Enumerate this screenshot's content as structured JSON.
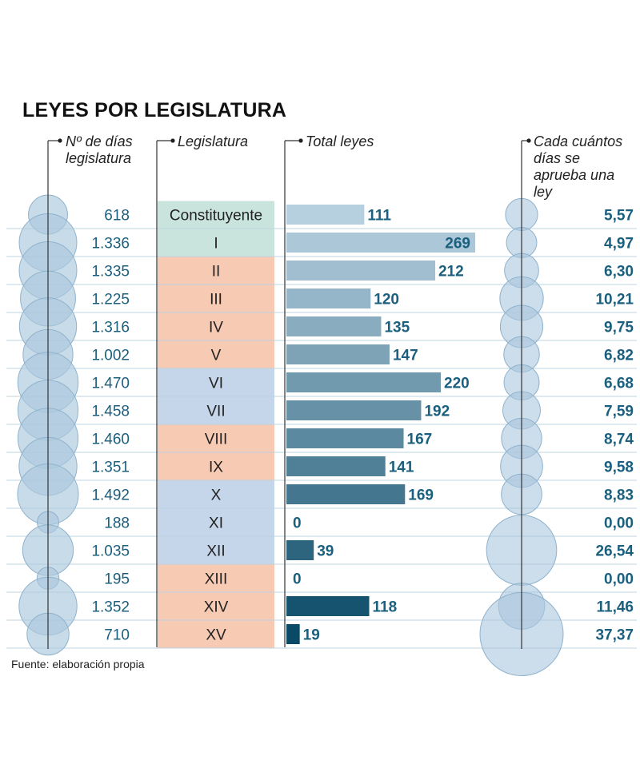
{
  "title": "LEYES POR LEGISLATURA",
  "source": "Fuente: elaboración propia",
  "headers": {
    "days": "Nº de días legislatura",
    "legislature": "Legislatura",
    "total": "Total leyes",
    "rate": "Cada cuántos días se aprueba una ley"
  },
  "colors": {
    "constituyente": "#c9e4dd",
    "group_blue": "#c5d6ea",
    "group_salmon": "#f6cab3",
    "bubble_fill": "#aac7dd",
    "bubble_stroke": "#8fb2cc",
    "bar_light": "#b7d0e0",
    "bar_dark": "#0b4a66",
    "value_text": "#1b5f7e"
  },
  "chart_data": {
    "type": "bar",
    "categories": [
      "Constituyente",
      "I",
      "II",
      "III",
      "IV",
      "V",
      "VI",
      "VII",
      "VIII",
      "IX",
      "X",
      "XI",
      "XII",
      "XIII",
      "XIV",
      "XV"
    ],
    "category_colors": [
      "constituyente",
      "constituyente",
      "group_salmon",
      "group_salmon",
      "group_salmon",
      "group_salmon",
      "group_blue",
      "group_blue",
      "group_salmon",
      "group_salmon",
      "group_blue",
      "group_blue",
      "group_blue",
      "group_salmon",
      "group_salmon",
      "group_salmon"
    ],
    "days": [
      618,
      1336,
      1335,
      1225,
      1316,
      1002,
      1470,
      1458,
      1460,
      1351,
      1492,
      188,
      1035,
      195,
      1352,
      710
    ],
    "days_labels": [
      "618",
      "1.336",
      "1.335",
      "1.225",
      "1.316",
      "1.002",
      "1.470",
      "1.458",
      "1.460",
      "1.351",
      "1.492",
      "188",
      "1.035",
      "195",
      "1.352",
      "710"
    ],
    "total_leyes": [
      111,
      269,
      212,
      120,
      135,
      147,
      220,
      192,
      167,
      141,
      169,
      0,
      39,
      0,
      118,
      19
    ],
    "days_per_law": [
      5.57,
      4.97,
      6.3,
      10.21,
      9.75,
      6.82,
      6.68,
      7.59,
      8.74,
      9.58,
      8.83,
      0.0,
      26.54,
      0.0,
      11.46,
      37.37
    ],
    "days_per_law_labels": [
      "5,57",
      "4,97",
      "6,30",
      "10,21",
      "9,75",
      "6,82",
      "6,68",
      "7,59",
      "8,74",
      "9,58",
      "8,83",
      "0,00",
      "26,54",
      "0,00",
      "11,46",
      "37,37"
    ]
  }
}
